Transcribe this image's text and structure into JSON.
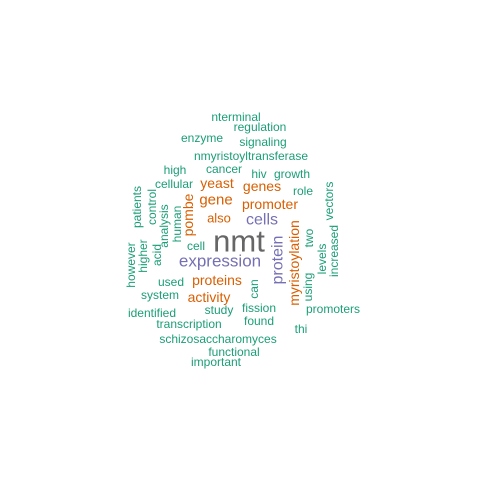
{
  "palette": {
    "green": "#1b9e77",
    "orange": "#d95f02",
    "purple": "#7570b3",
    "grey": "#666666"
  },
  "words": [
    {
      "text": "nmt",
      "color": "grey"
    },
    {
      "text": "expression",
      "color": "purple"
    },
    {
      "text": "cells",
      "color": "purple"
    },
    {
      "text": "protein",
      "color": "purple"
    },
    {
      "text": "myristoylation",
      "color": "orange"
    },
    {
      "text": "proteins",
      "color": "orange"
    },
    {
      "text": "activity",
      "color": "orange"
    },
    {
      "text": "promoter",
      "color": "orange"
    },
    {
      "text": "gene",
      "color": "orange"
    },
    {
      "text": "genes",
      "color": "orange"
    },
    {
      "text": "yeast",
      "color": "orange"
    },
    {
      "text": "pombe",
      "color": "orange"
    },
    {
      "text": "also",
      "color": "orange"
    },
    {
      "text": "nterminal",
      "color": "green"
    },
    {
      "text": "regulation",
      "color": "green"
    },
    {
      "text": "enzyme",
      "color": "green"
    },
    {
      "text": "signaling",
      "color": "green"
    },
    {
      "text": "nmyristoyltransferase",
      "color": "green"
    },
    {
      "text": "high",
      "color": "green"
    },
    {
      "text": "cancer",
      "color": "green"
    },
    {
      "text": "cellular",
      "color": "green"
    },
    {
      "text": "hiv",
      "color": "green"
    },
    {
      "text": "growth",
      "color": "green"
    },
    {
      "text": "role",
      "color": "green"
    },
    {
      "text": "patients",
      "color": "green"
    },
    {
      "text": "control",
      "color": "green"
    },
    {
      "text": "analysis",
      "color": "green"
    },
    {
      "text": "human",
      "color": "green"
    },
    {
      "text": "vectors",
      "color": "green"
    },
    {
      "text": "two",
      "color": "green"
    },
    {
      "text": "higher",
      "color": "green"
    },
    {
      "text": "acid",
      "color": "green"
    },
    {
      "text": "cell",
      "color": "green"
    },
    {
      "text": "however",
      "color": "green"
    },
    {
      "text": "levels",
      "color": "green"
    },
    {
      "text": "increased",
      "color": "green"
    },
    {
      "text": "used",
      "color": "green"
    },
    {
      "text": "system",
      "color": "green"
    },
    {
      "text": "can",
      "color": "green"
    },
    {
      "text": "using",
      "color": "green"
    },
    {
      "text": "identified",
      "color": "green"
    },
    {
      "text": "study",
      "color": "green"
    },
    {
      "text": "fission",
      "color": "green"
    },
    {
      "text": "promoters",
      "color": "green"
    },
    {
      "text": "transcription",
      "color": "green"
    },
    {
      "text": "found",
      "color": "green"
    },
    {
      "text": "thi",
      "color": "green"
    },
    {
      "text": "schizosaccharomyces",
      "color": "green"
    },
    {
      "text": "functional",
      "color": "green"
    },
    {
      "text": "important",
      "color": "green"
    }
  ]
}
